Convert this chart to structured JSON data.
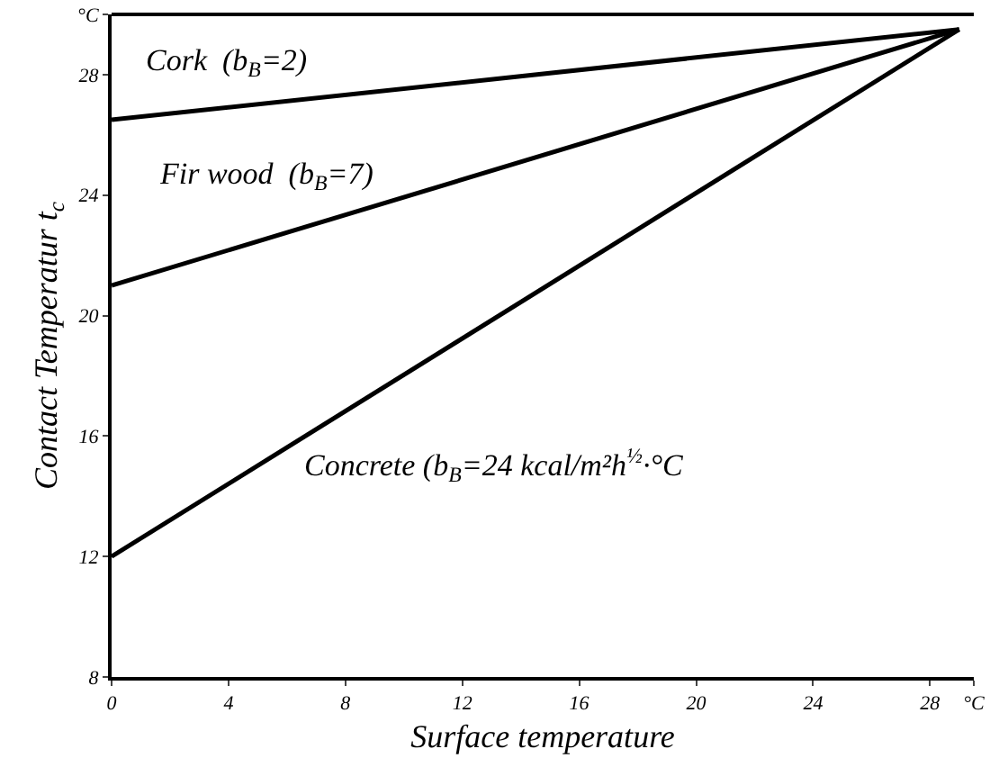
{
  "chart_data": {
    "type": "line",
    "xlabel": "Surface temperature",
    "ylabel": "Contact Temperatur t$_{c}$",
    "x": [
      0,
      29
    ],
    "series": [
      {
        "name": "Cork  (b$_{B}$=2)",
        "color": "#000000",
        "values": [
          26.5,
          29.5
        ]
      },
      {
        "name": "Fir wood  (b$_{B}$=7)",
        "color": "#000000",
        "values": [
          21,
          29.5
        ]
      },
      {
        "name": "Concrete (b$_{B}$=24 kcal/m²h$^{½}$·°C",
        "color": "#000000",
        "values": [
          12,
          29.5
        ]
      }
    ],
    "xlim": [
      0,
      29.5
    ],
    "xticks": [
      0,
      4,
      8,
      12,
      16,
      20,
      24,
      28,
      {
        "value": 29.5,
        "label": "°C"
      }
    ],
    "ylim": [
      8,
      30
    ],
    "yticks": [
      8,
      12,
      16,
      20,
      24,
      28,
      {
        "value": 30,
        "label": "°C"
      }
    ],
    "grid": false,
    "legend": false,
    "marker": "none",
    "line_style": "solid"
  }
}
